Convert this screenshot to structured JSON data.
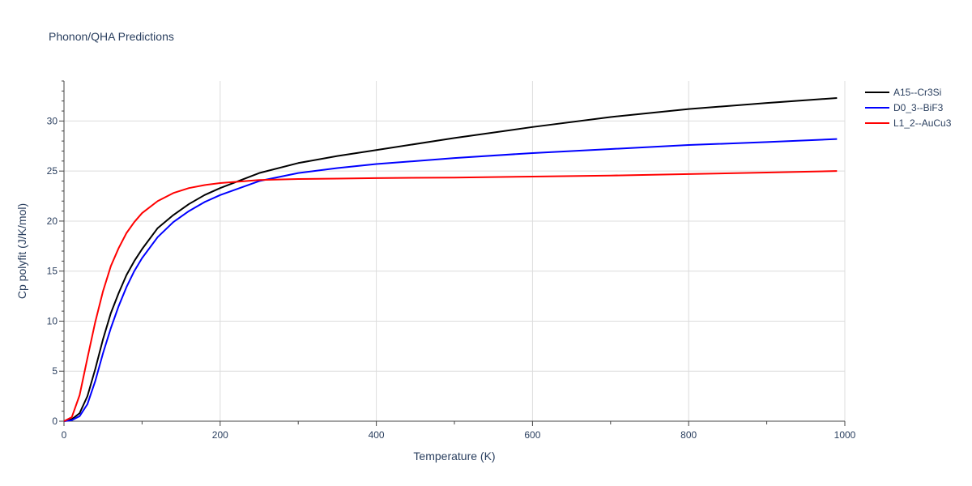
{
  "chart_data": {
    "type": "line",
    "title": "Phonon/QHA Predictions",
    "xlabel": "Temperature (K)",
    "ylabel": "Cp polyfit (J/K/mol)",
    "xlim": [
      0,
      1000
    ],
    "ylim": [
      0,
      34
    ],
    "xticks": [
      0,
      200,
      400,
      600,
      800,
      1000
    ],
    "yticks": [
      0,
      5,
      10,
      15,
      20,
      25,
      30
    ],
    "grid": true,
    "legend_position": "top-right",
    "series": [
      {
        "name": "A15--Cr3Si",
        "color": "#000000",
        "x": [
          0,
          10,
          20,
          30,
          40,
          50,
          60,
          70,
          80,
          90,
          100,
          120,
          140,
          160,
          180,
          200,
          250,
          300,
          350,
          400,
          500,
          600,
          700,
          800,
          900,
          990
        ],
        "y": [
          0,
          0.2,
          0.8,
          2.5,
          5.2,
          8.2,
          10.8,
          12.8,
          14.6,
          16.0,
          17.2,
          19.3,
          20.6,
          21.7,
          22.6,
          23.3,
          24.8,
          25.8,
          26.5,
          27.1,
          28.3,
          29.4,
          30.4,
          31.2,
          31.8,
          32.3
        ]
      },
      {
        "name": "D0_3--BiF3",
        "color": "#0000ff",
        "x": [
          0,
          10,
          20,
          30,
          40,
          50,
          60,
          70,
          80,
          90,
          100,
          120,
          140,
          160,
          180,
          200,
          250,
          300,
          350,
          400,
          500,
          600,
          700,
          800,
          900,
          990
        ],
        "y": [
          0,
          0.1,
          0.5,
          1.7,
          4.0,
          6.8,
          9.3,
          11.5,
          13.4,
          15.0,
          16.3,
          18.4,
          19.9,
          21.0,
          21.9,
          22.6,
          24.0,
          24.8,
          25.3,
          25.7,
          26.3,
          26.8,
          27.2,
          27.6,
          27.9,
          28.2
        ]
      },
      {
        "name": "L1_2--AuCu3",
        "color": "#ff0000",
        "x": [
          0,
          10,
          20,
          30,
          40,
          50,
          60,
          70,
          80,
          90,
          100,
          120,
          140,
          160,
          180,
          200,
          250,
          300,
          350,
          400,
          500,
          600,
          700,
          800,
          900,
          990
        ],
        "y": [
          0,
          0.4,
          2.6,
          6.3,
          9.9,
          13.0,
          15.5,
          17.3,
          18.8,
          19.9,
          20.8,
          22.0,
          22.8,
          23.3,
          23.6,
          23.8,
          24.1,
          24.2,
          24.25,
          24.3,
          24.35,
          24.45,
          24.55,
          24.7,
          24.85,
          25.0
        ]
      }
    ]
  }
}
